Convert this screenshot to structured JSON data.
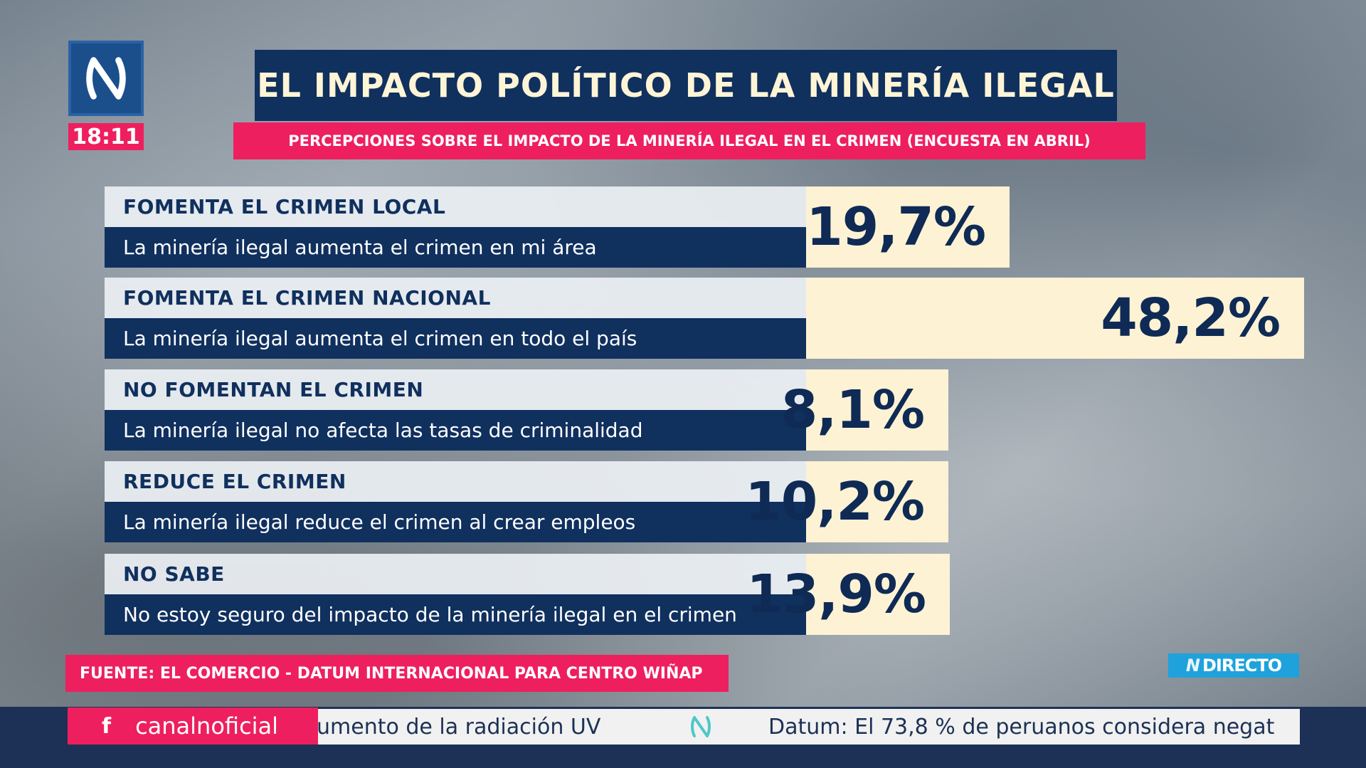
{
  "channel": {
    "logo_icon": "canal-n-logo-icon",
    "time": "18:11"
  },
  "title": "EL IMPACTO POLÍTICO DE LA MINERÍA ILEGAL",
  "subtitle": "PERCEPCIONES SOBRE EL IMPACTO DE LA MINERÍA ILEGAL EN EL CRIMEN (ENCUESTA EN ABRIL)",
  "chart_data": {
    "type": "bar",
    "orientation": "horizontal",
    "title": "EL IMPACTO POLÍTICO DE LA MINERÍA ILEGAL",
    "subtitle": "PERCEPCIONES SOBRE EL IMPACTO DE LA MINERÍA ILEGAL EN EL CRIMEN (ENCUESTA EN ABRIL)",
    "unit": "%",
    "categories": [
      "FOMENTA EL CRIMEN LOCAL",
      "FOMENTA EL CRIMEN NACIONAL",
      "NO FOMENTAN EL CRIMEN",
      "REDUCE EL CRIMEN",
      "NO SABE"
    ],
    "descriptions": [
      "La minería ilegal aumenta el crimen en mi área",
      "La minería ilegal aumenta el crimen en todo el país",
      "La minería ilegal no afecta las tasas de criminalidad",
      "La minería ilegal reduce el crimen al crear empleos",
      "No estoy seguro del impacto de la minería ilegal en el crimen"
    ],
    "values": [
      19.7,
      48.2,
      8.1,
      10.2,
      13.9
    ],
    "value_labels": [
      "19,7%",
      "48,2%",
      "8,1%",
      "10,2%",
      "13,9%"
    ],
    "bar_color": "#fdf2d4",
    "label_color": "#0e2a55"
  },
  "source": "FUENTE: EL COMERCIO - DATUM INTERNACIONAL PARA CENTRO WIÑAP",
  "live_badge": {
    "n": "N",
    "label": "DIRECTO"
  },
  "ticker": {
    "social_icon": "facebook-icon",
    "social_glyph": "f",
    "social_handle": "canalnoficial",
    "item1": "umento de la radiación UV",
    "item2": "Datum: El 73,8 % de peruanos considera negat"
  },
  "colors": {
    "navy": "#10305e",
    "pink": "#ee1f5f",
    "cream": "#fdf2d4",
    "blue": "#1a4f8c"
  }
}
